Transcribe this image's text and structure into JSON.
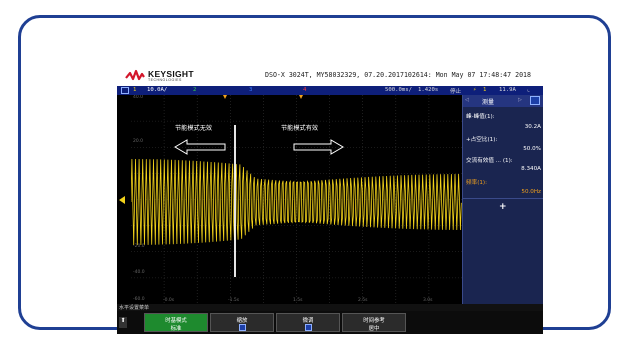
{
  "header": {
    "brand": "KEYSIGHT",
    "brand_sub": "TECHNOLOGIES",
    "model_info": "DSO-X 3024T, MY58032329, 07.20.2017102614: Mon May 07 17:48:47 2018"
  },
  "channel_bar": {
    "ch1_num": "1",
    "ch1_scale": "10.0A/",
    "ch2_num": "2",
    "ch3_num": "3",
    "ch4_num": "4",
    "timebase": "500.0ms/",
    "delay": "1.420s",
    "run_state": "停止",
    "trigger_ch": "1",
    "trigger_level": "11.9A"
  },
  "annotations": {
    "left_label": "节能模式无效",
    "right_label": "节能模式有效"
  },
  "grid_labels": {
    "y_labels": [
      "40.0",
      "20.0",
      "-20.0",
      "-40.0",
      "-60.0"
    ],
    "x_labels": [
      "-0.0s",
      "-1.5s",
      "1.5s",
      "2.5s",
      "3.0s"
    ]
  },
  "measure_panel": {
    "title": "测量",
    "items": [
      {
        "label": "峰-峰值(1):",
        "value": "30.2A"
      },
      {
        "label": "+占空比(1):",
        "value": "50.0%"
      },
      {
        "label": "交流有效值 ... (1):",
        "value": "8.340A"
      },
      {
        "label": "频率(1):",
        "value": "50.0Hz"
      }
    ],
    "add_symbol": "+"
  },
  "footer": {
    "menu_title": "水平设置菜单",
    "softkeys": [
      {
        "line1": "时基模式",
        "line2": "标准"
      },
      {
        "line1": "缩放",
        "line2": ""
      },
      {
        "line1": "微调",
        "line2": ""
      },
      {
        "line1": "时间参考",
        "line2": "居中"
      }
    ]
  },
  "colors": {
    "channel1": "#f2d21b",
    "frame": "#1f3f93",
    "channel_bar": "#0e1f7a",
    "softkey_active": "#1e8a2e",
    "freq_label": "#f2a11b"
  }
}
